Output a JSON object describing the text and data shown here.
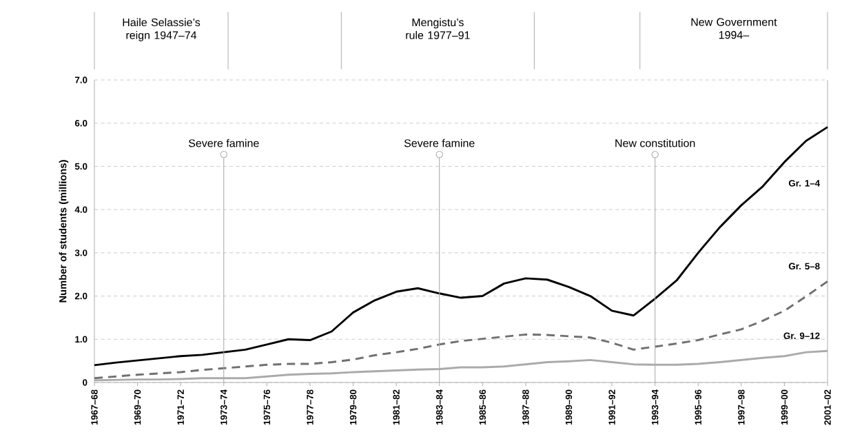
{
  "chart_data": {
    "type": "line",
    "ylabel": "Number of students (millions)",
    "categories": [
      "1967–68",
      null,
      "1969–70",
      null,
      "1971–72",
      null,
      "1973–74",
      null,
      "1975–76",
      null,
      "1977–78",
      null,
      "1979–80",
      null,
      "1981–82",
      null,
      "1983–84",
      null,
      "1985–86",
      null,
      "1987–88",
      null,
      "1989–90",
      null,
      "1991–92",
      null,
      "1993–94",
      null,
      "1995–96",
      null,
      "1997–98",
      null,
      "1999–00",
      null,
      "2001–02"
    ],
    "series": [
      {
        "name": "Gr. 1–4",
        "color": "#000000",
        "line_style": "solid",
        "values": [
          0.4,
          0.46,
          0.51,
          0.56,
          0.61,
          0.64,
          0.7,
          0.76,
          0.88,
          1.0,
          0.98,
          1.18,
          1.62,
          1.9,
          2.1,
          2.18,
          2.06,
          1.96,
          2.0,
          2.29,
          2.41,
          2.38,
          2.21,
          2.0,
          1.66,
          1.55,
          1.94,
          2.36,
          3.0,
          3.59,
          4.1,
          4.54,
          5.1,
          5.59,
          5.91
        ]
      },
      {
        "name": "Gr. 5–8",
        "color": "#707070",
        "line_style": "dashed",
        "values": [
          0.1,
          0.14,
          0.18,
          0.21,
          0.24,
          0.29,
          0.33,
          0.37,
          0.41,
          0.43,
          0.43,
          0.47,
          0.53,
          0.63,
          0.7,
          0.78,
          0.88,
          0.96,
          1.01,
          1.06,
          1.11,
          1.1,
          1.07,
          1.04,
          0.92,
          0.76,
          0.83,
          0.9,
          0.98,
          1.11,
          1.23,
          1.43,
          1.66,
          1.99,
          2.34
        ]
      },
      {
        "name": "Gr. 9–12",
        "color": "#aaaaaa",
        "line_style": "solid",
        "values": [
          0.05,
          0.06,
          0.07,
          0.07,
          0.08,
          0.1,
          0.1,
          0.1,
          0.14,
          0.18,
          0.2,
          0.21,
          0.24,
          0.26,
          0.28,
          0.3,
          0.31,
          0.35,
          0.35,
          0.37,
          0.42,
          0.47,
          0.49,
          0.52,
          0.47,
          0.42,
          0.41,
          0.41,
          0.43,
          0.47,
          0.52,
          0.57,
          0.61,
          0.7,
          0.73
        ]
      }
    ],
    "ylim": [
      0,
      7
    ],
    "yticks": [
      0,
      {
        "value": 1,
        "label": "1.0"
      },
      {
        "value": 2,
        "label": "2.0"
      },
      {
        "value": 3,
        "label": "3.0"
      },
      {
        "value": 4,
        "label": "4.0"
      },
      {
        "value": 5,
        "label": "5.0"
      },
      {
        "value": 6,
        "label": "6.0"
      },
      {
        "value": 7,
        "label": "7.0"
      }
    ],
    "grid": "y",
    "ref_lines": [
      {
        "axis": "x",
        "value": "1973–74",
        "label": "Severe famine",
        "color": "#aaaaaa"
      },
      {
        "axis": "x",
        "value": "1983–84",
        "label": "Severe famine",
        "color": "#aaaaaa"
      },
      {
        "axis": "x",
        "value": "1993–94",
        "label": "New constitution",
        "color": "#aaaaaa"
      }
    ],
    "annotations": [
      "Haile Selassie’s reign 1947–74",
      "Mengistu’s rule 1977–91",
      "New Government 1994–"
    ]
  }
}
